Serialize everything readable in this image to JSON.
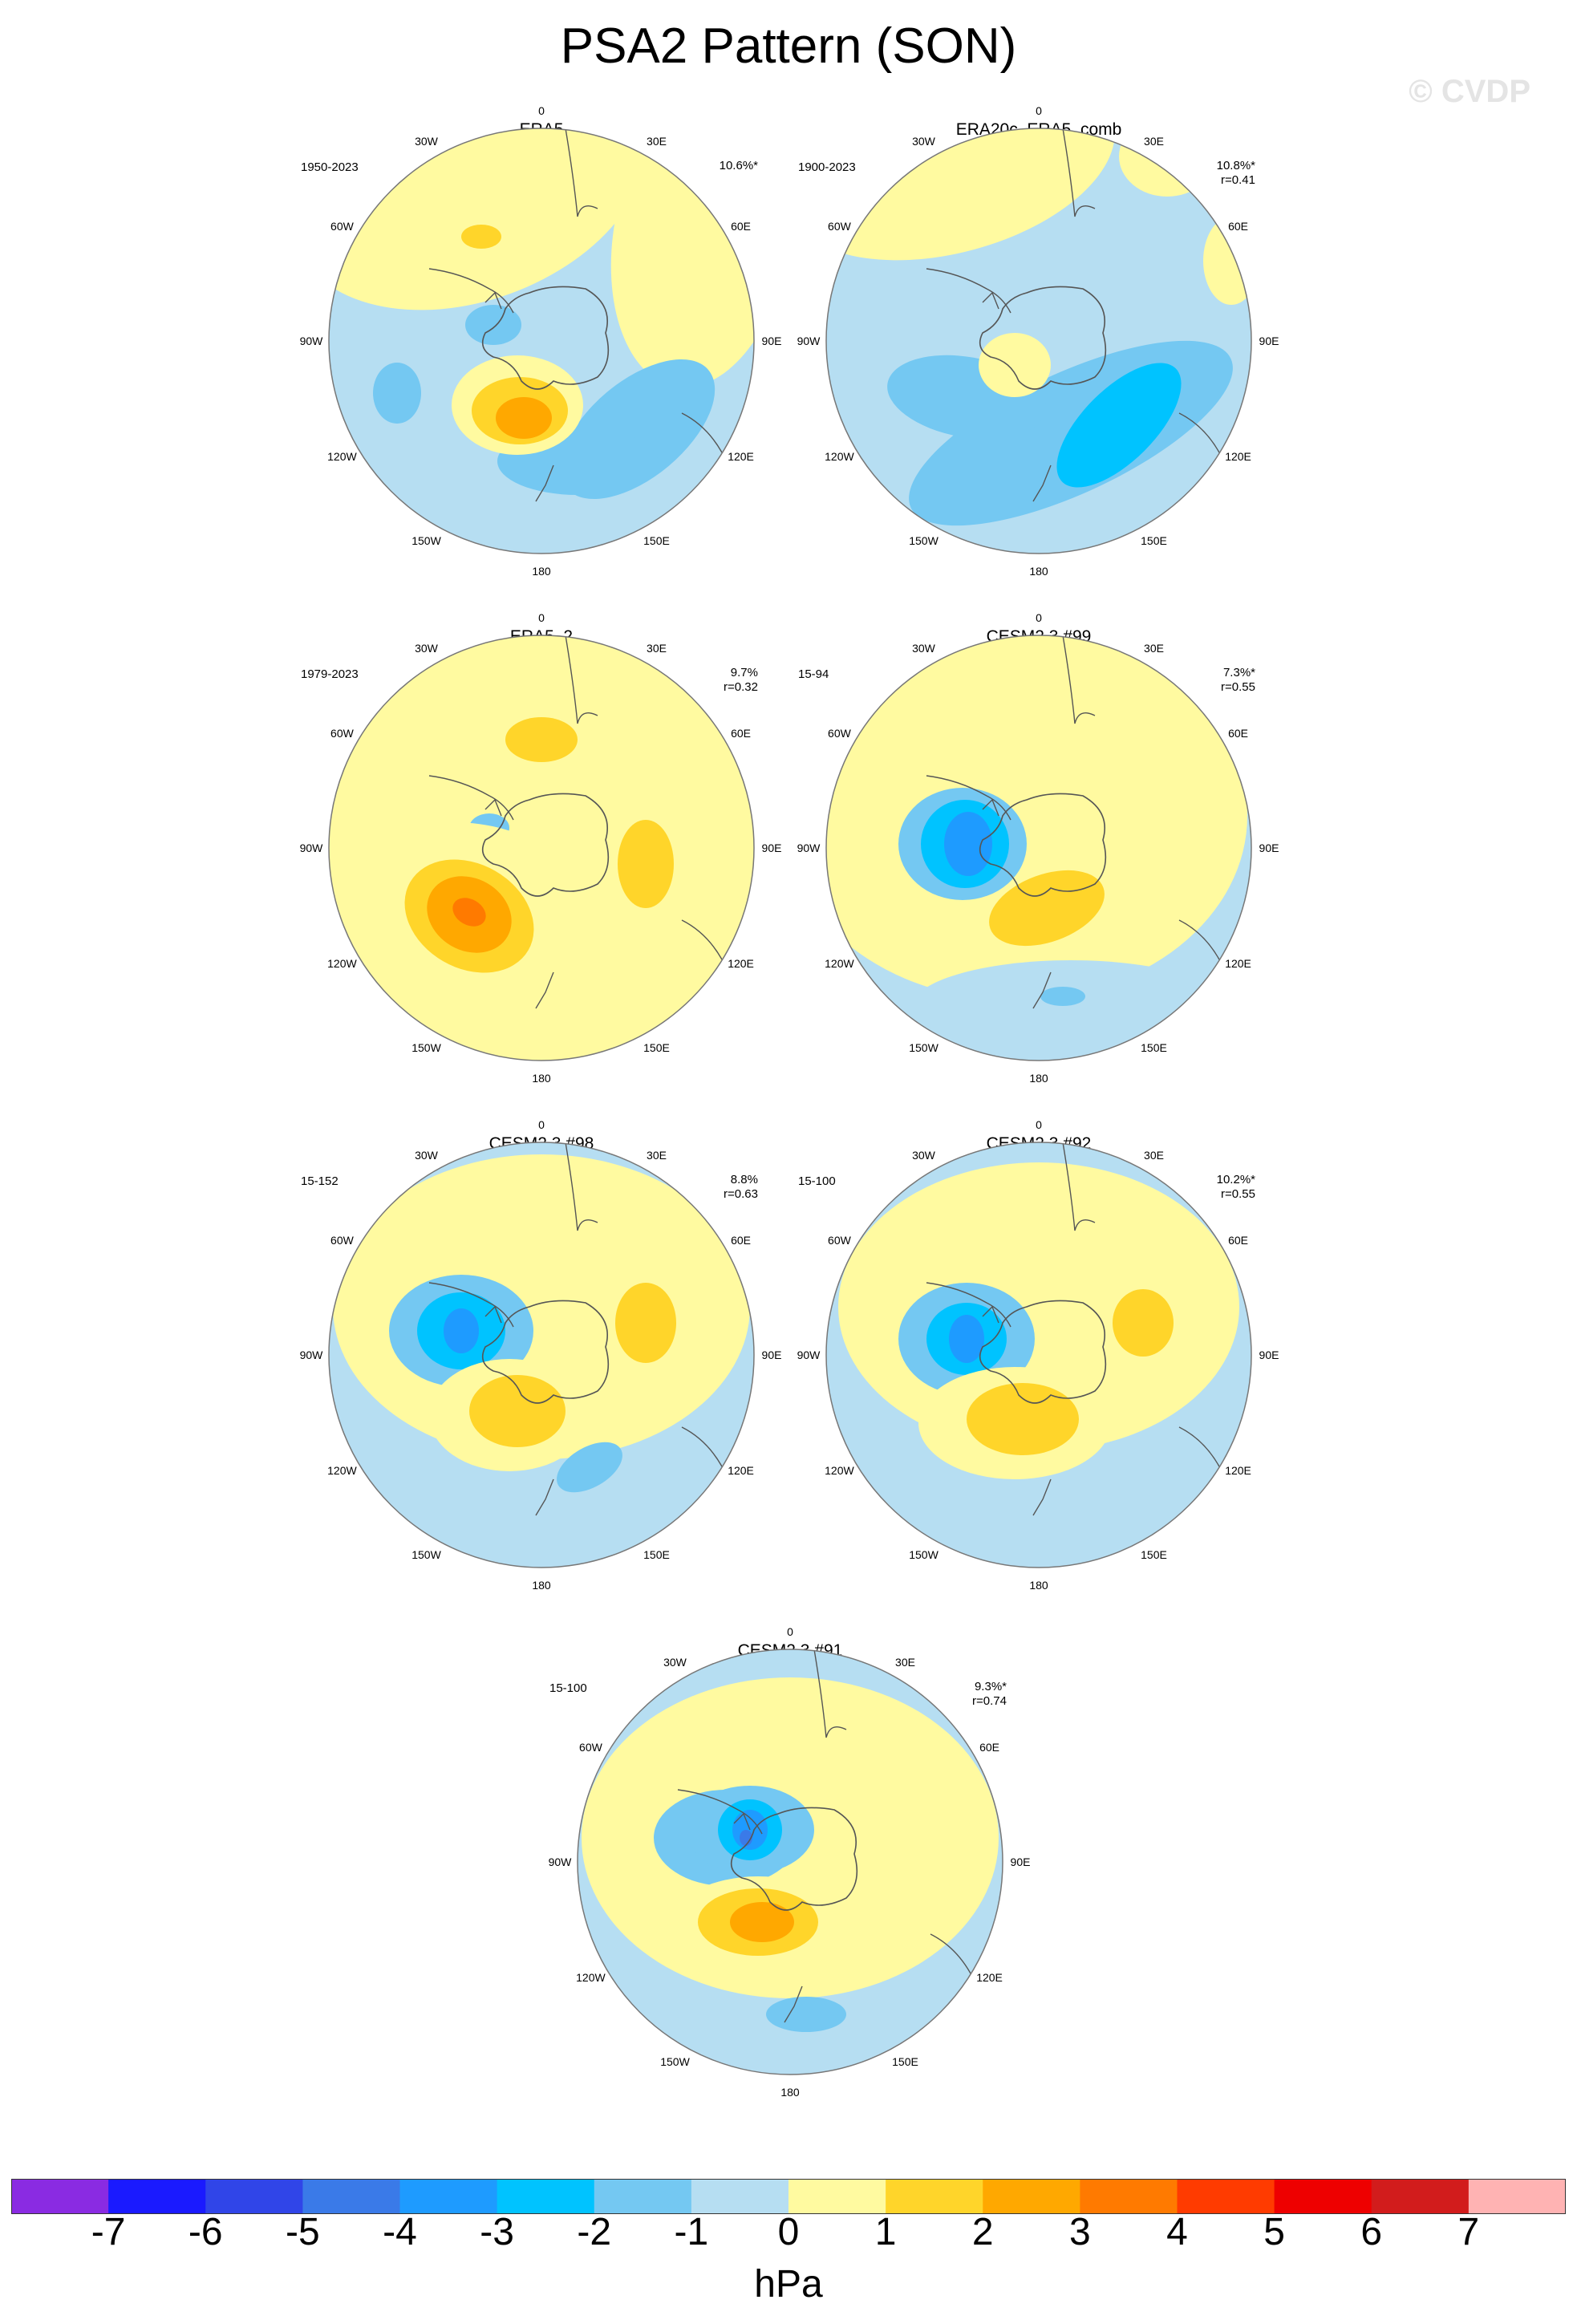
{
  "title": "PSA2 Pattern (SON)",
  "watermark": "© CVDP",
  "lon_labels": [
    "0",
    "30E",
    "60E",
    "90E",
    "120E",
    "150E",
    "180",
    "150W",
    "120W",
    "90W",
    "60W",
    "30W"
  ],
  "colors": {
    "n7": "#8a2be2",
    "n6": "#1a1aff",
    "n5": "#3045e8",
    "n4": "#3a7ae8",
    "n3": "#1e9bff",
    "n2": "#00c3ff",
    "n1": "#74c8f2",
    "n0": "#b6def2",
    "p0": "#fffaa0",
    "p1": "#ffd52a",
    "p2": "#ffa800",
    "p3": "#ff7a00",
    "p4": "#ff3b00",
    "p5": "#ee0000",
    "p6": "#d21c1c",
    "p7": "#ffb3b3",
    "land": "#555555",
    "rim": "#777777"
  },
  "panels": [
    {
      "title": "ERA5",
      "period": "1950-2023",
      "pct": "10.6%*",
      "corr": ""
    },
    {
      "title": "ERA20c_ERA5_comb",
      "period": "1900-2023",
      "pct": "10.8%*",
      "corr": "r=0.41"
    },
    {
      "title": "ERA5_2",
      "period": "1979-2023",
      "pct": "9.7%",
      "corr": "r=0.32"
    },
    {
      "title": "CESM2.3 #99",
      "period": "15-94",
      "pct": "7.3%*",
      "corr": "r=0.55"
    },
    {
      "title": "CESM2.3 #98",
      "period": "15-152",
      "pct": "8.8%",
      "corr": "r=0.63"
    },
    {
      "title": "CESM2.3 #92",
      "period": "15-100",
      "pct": "10.2%*",
      "corr": "r=0.55"
    },
    {
      "title": "CESM2.3 #91",
      "period": "15-100",
      "pct": "9.3%*",
      "corr": "r=0.74"
    }
  ],
  "colorbar": {
    "ticks": [
      "-7",
      "-6",
      "-5",
      "-4",
      "-3",
      "-2",
      "-1",
      "0",
      "1",
      "2",
      "3",
      "4",
      "5",
      "6",
      "7"
    ],
    "units": "hPa"
  }
}
